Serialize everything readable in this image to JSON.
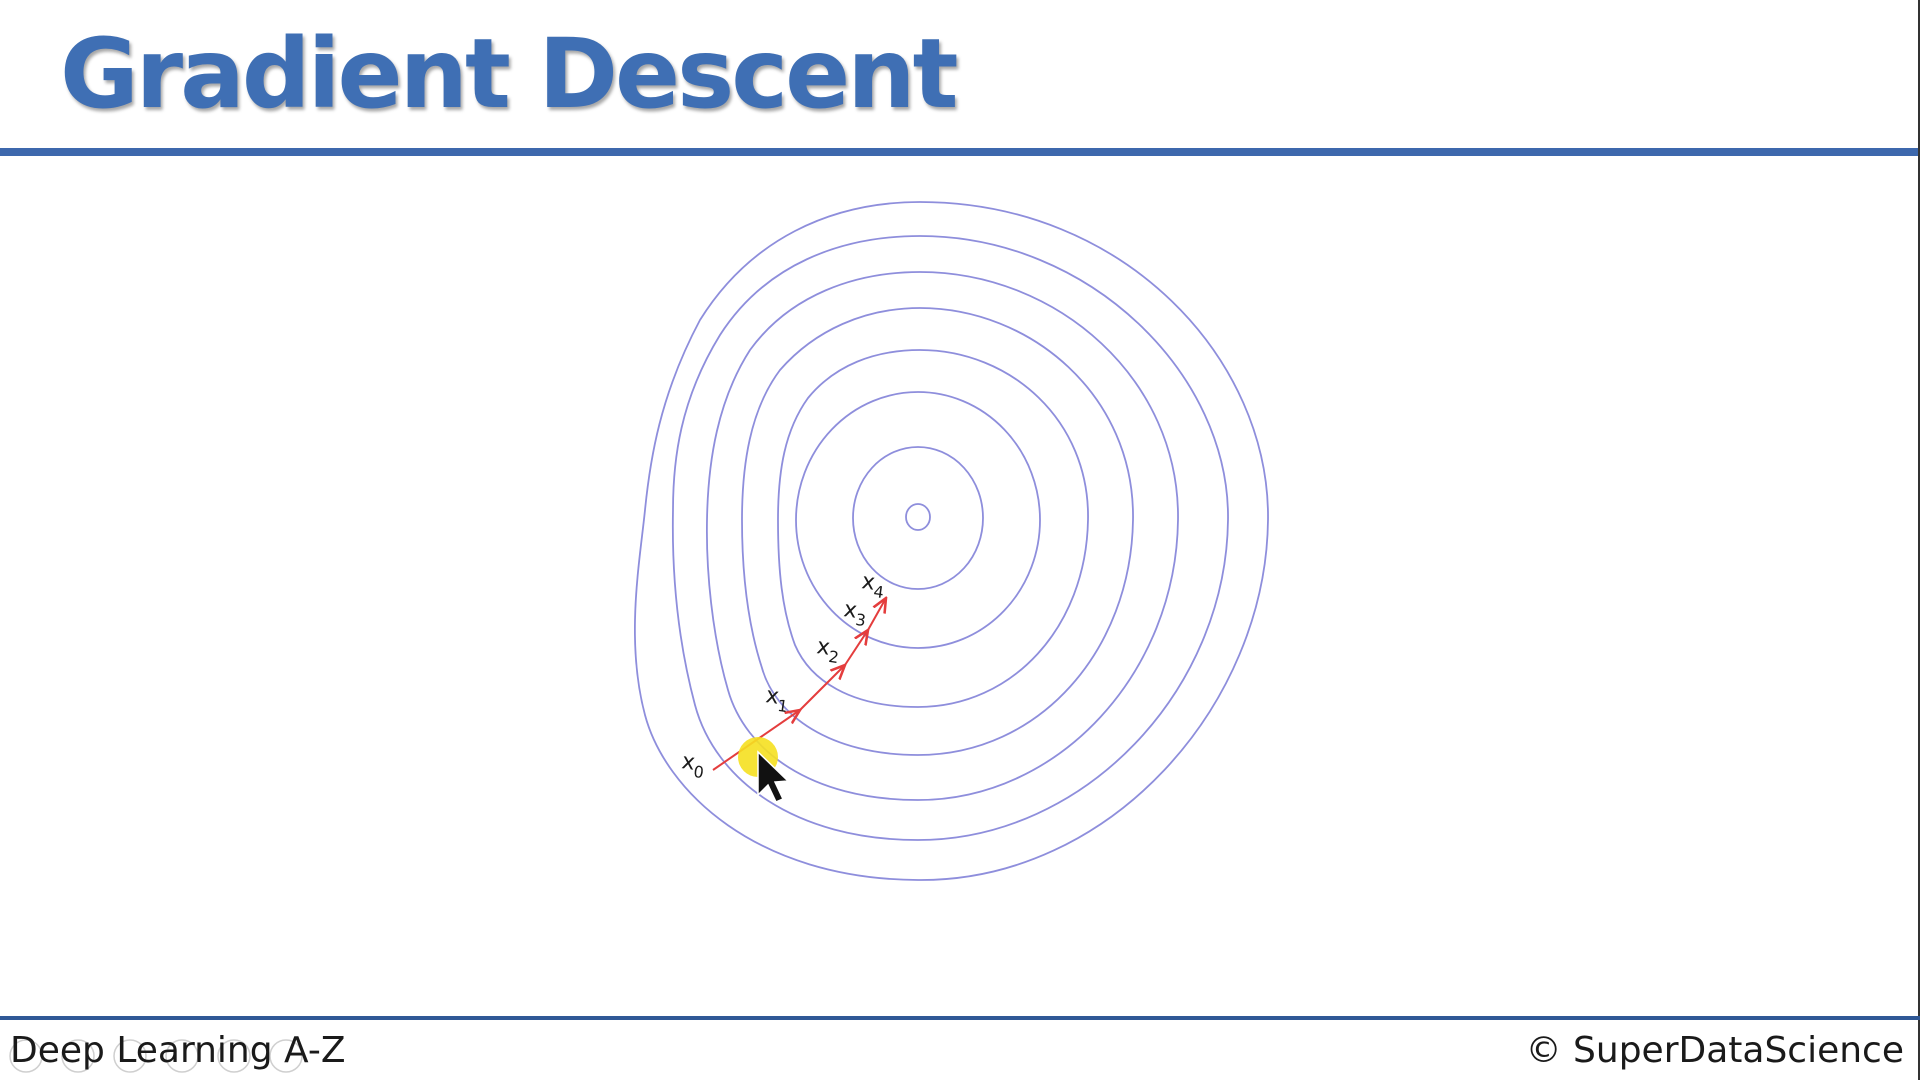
{
  "slide": {
    "title": "Gradient Descent"
  },
  "diagram": {
    "points": [
      {
        "name": "x",
        "sub": "0"
      },
      {
        "name": "x",
        "sub": "1"
      },
      {
        "name": "x",
        "sub": "2"
      },
      {
        "name": "x",
        "sub": "3"
      },
      {
        "name": "x",
        "sub": "4"
      }
    ],
    "contour_color": "#8e8edc",
    "path_color": "#e43d3d",
    "cursor_highlight_color": "#f5e020"
  },
  "footer": {
    "course": "Deep Learning A-Z",
    "copyright": "© SuperDataScience"
  },
  "colors": {
    "title": "#3f6fb4",
    "rule": "#3d68ad"
  }
}
